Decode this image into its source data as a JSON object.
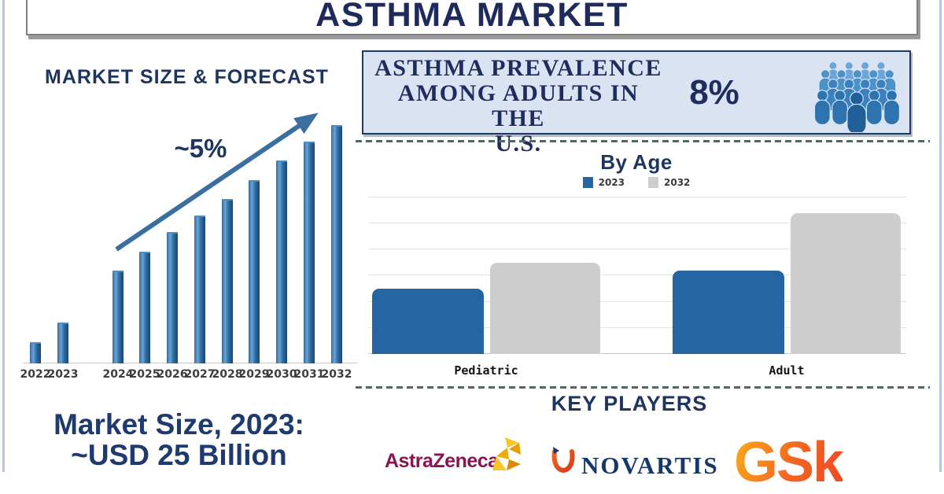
{
  "header": {
    "title": "ASTHMA MARKET"
  },
  "forecast_section": {
    "title": "MARKET SIZE & FORECAST"
  },
  "prevalence_banner": {
    "lines": [
      "ASTHMA PREVALENCE",
      "AMONG ADULTS IN THE",
      "U.S."
    ],
    "value": "8%",
    "icon": "people-crowd-icon",
    "background_color": "#dae3f1",
    "border_color": "#1f3864"
  },
  "by_age_section": {
    "title": "By Age"
  },
  "market_size_callout": {
    "lines": [
      "Market Size, 2023:",
      "~USD 25 Billion"
    ]
  },
  "key_players_section": {
    "title": "KEY PLAYERS",
    "companies": [
      {
        "name": "AstraZeneca",
        "display": "AstraZeneca",
        "brand_color": "#8b1350",
        "icon": "astrazeneca-mosaic-icon"
      },
      {
        "name": "Novartis",
        "display": "NOVARTIS",
        "brand_color": "#15386b",
        "icon": "novartis-torch-icon"
      },
      {
        "name": "GSK",
        "display": "GSk",
        "brand_color": "#f58220",
        "icon": "gsk-wordmark"
      }
    ]
  },
  "theme": {
    "navy_text": "#1e2f5c",
    "bar_blue": "#2e6da4",
    "byage_blue": "#2565a3",
    "byage_gray": "#cdcdcd",
    "frame_blue": "#b5c9e4"
  },
  "chart_data": [
    {
      "type": "bar",
      "title": "MARKET SIZE & FORECAST",
      "categories": [
        "2022",
        "2023",
        "2024",
        "2025",
        "2026",
        "2027",
        "2028",
        "2029",
        "2030",
        "2031",
        "2032"
      ],
      "values": [
        9,
        17,
        39,
        47,
        55,
        62,
        69,
        77,
        85,
        93,
        100
      ],
      "units": "relative bar height, 2032 = 100 (y-axis unlabeled)",
      "annotation": "~5%",
      "annotation_style": "upward trend arrow across forecast bars",
      "bar_color": "#2e6da4",
      "xlabel": "",
      "ylabel": "",
      "grid": false,
      "legend_position": "none",
      "note": "visual gap between 2023 (historic) and 2024 (forecast) bars"
    },
    {
      "type": "bar",
      "title": "By Age",
      "categories": [
        "Pediatric",
        "Adult"
      ],
      "series": [
        {
          "name": "2023",
          "values": [
            2.5,
            3.2
          ]
        },
        {
          "name": "2032",
          "values": [
            3.5,
            5.4
          ]
        }
      ],
      "units": "gridline units (y-axis unlabeled)",
      "ylim": [
        0,
        6
      ],
      "grid": true,
      "legend_position": "top",
      "colors": {
        "2023": "#2565a3",
        "2032": "#cdcdcd"
      }
    }
  ]
}
